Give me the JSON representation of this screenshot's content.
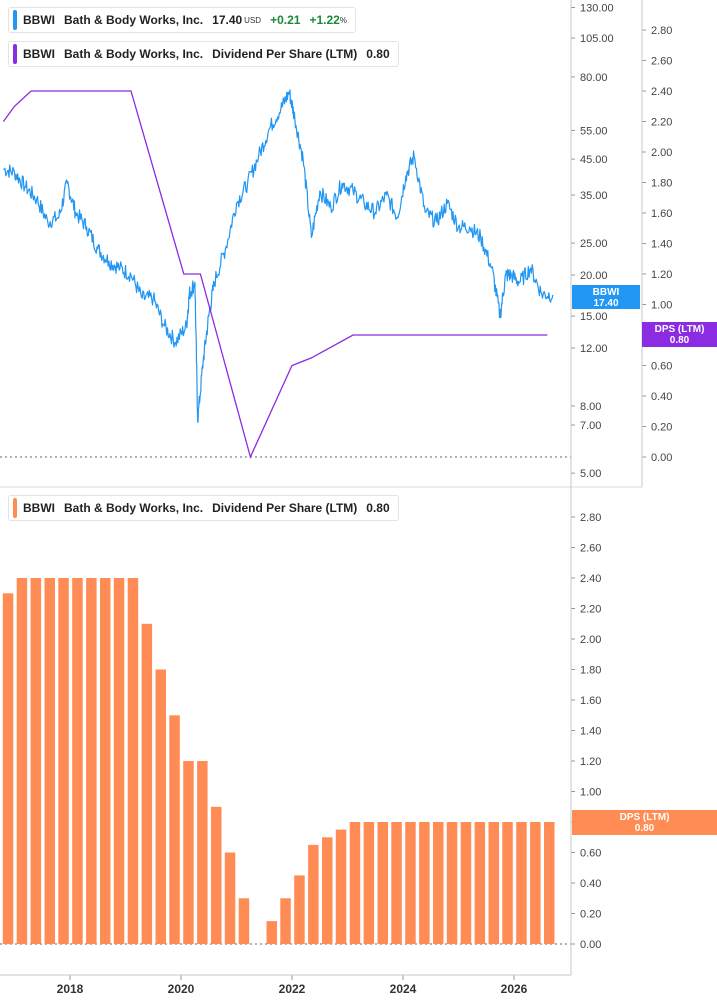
{
  "top_legend": {
    "price_row": {
      "ticker": "BBWI",
      "company": "Bath & Body Works, Inc.",
      "price": "17.40",
      "currency": "USD",
      "change": "+0.21",
      "change_pct": "+1.22",
      "pct_sign": "%",
      "color": "#2196f3"
    },
    "dps_row": {
      "ticker": "BBWI",
      "company": "Bath & Body Works, Inc.",
      "metric": "Dividend Per Share (LTM)",
      "value": "0.80",
      "color": "#8b2be2"
    }
  },
  "bottom_legend": {
    "ticker": "BBWI",
    "company": "Bath & Body Works, Inc.",
    "metric": "Dividend Per Share (LTM)",
    "value": "0.80",
    "color": "#ff8c55"
  },
  "badges": {
    "price": {
      "line1": "BBWI",
      "line2": "17.40",
      "color": "#2196f3"
    },
    "dps_top": {
      "line1": "DPS (LTM)",
      "line2": "0.80",
      "color": "#8b2be2"
    },
    "dps_bottom": {
      "line1": "DPS (LTM)",
      "line2": "0.80",
      "color": "#ff8c55"
    }
  },
  "chart_data": [
    {
      "type": "line",
      "title": "",
      "y_scale": "log",
      "price_axis_ticks": [
        "130.00",
        "105.00",
        "80.00",
        "55.00",
        "45.00",
        "35.00",
        "25.00",
        "20.00",
        "15.00",
        "12.00",
        "8.00",
        "7.00",
        "5.00"
      ],
      "dps_axis_ticks": [
        "2.80",
        "2.60",
        "2.40",
        "2.20",
        "2.00",
        "1.80",
        "1.60",
        "1.40",
        "1.20",
        "1.00",
        "0.80",
        "0.60",
        "0.40",
        "0.20",
        "0.00"
      ],
      "series": [
        {
          "name": "BBWI",
          "axis": "left-log",
          "color": "#2196f3",
          "x": [
            2016.8,
            2017.0,
            2017.2,
            2017.4,
            2017.6,
            2017.8,
            2017.95,
            2018.1,
            2018.3,
            2018.5,
            2018.7,
            2018.9,
            2019.1,
            2019.3,
            2019.5,
            2019.7,
            2019.9,
            2020.1,
            2020.15,
            2020.25,
            2020.3,
            2020.4,
            2020.5,
            2020.6,
            2020.8,
            2021.0,
            2021.2,
            2021.4,
            2021.6,
            2021.8,
            2021.95,
            2022.05,
            2022.2,
            2022.35,
            2022.5,
            2022.7,
            2022.9,
            2023.1,
            2023.3,
            2023.5,
            2023.7,
            2023.9,
            2024.05,
            2024.2,
            2024.4,
            2024.6,
            2024.8,
            2025.0,
            2025.2,
            2025.4,
            2025.6,
            2025.75,
            2025.85,
            2025.95,
            2026.1,
            2026.3,
            2026.5,
            2026.7
          ],
          "values": [
            42,
            41,
            37,
            34,
            29,
            30,
            38,
            31,
            28,
            24,
            22,
            21,
            20,
            17,
            17,
            14,
            12.5,
            14,
            17.5,
            19,
            7.2,
            11,
            15,
            19,
            24,
            33,
            38,
            46,
            56,
            64,
            72,
            60,
            45,
            26,
            36,
            32,
            38,
            36,
            33,
            31,
            35,
            30,
            40,
            46,
            31,
            29,
            33,
            28,
            28,
            26,
            21,
            15,
            20,
            20,
            19,
            21,
            17.5,
            17.4
          ]
        },
        {
          "name": "DPS (LTM)",
          "axis": "right-linear",
          "color": "#8b2be2",
          "x": [
            2016.8,
            2017.0,
            2017.3,
            2018.0,
            2019.0,
            2019.1,
            2020.05,
            2020.35,
            2021.25,
            2021.75,
            2022.0,
            2022.35,
            2023.1,
            2026.6
          ],
          "values": [
            2.2,
            2.3,
            2.4,
            2.4,
            2.4,
            2.4,
            1.2,
            1.2,
            0.0,
            0.4,
            0.6,
            0.65,
            0.8,
            0.8
          ]
        }
      ],
      "x_range": [
        2016.8,
        2026.7
      ]
    },
    {
      "type": "bar",
      "title": "",
      "series": [
        {
          "name": "Dividend Per Share (LTM)",
          "color": "#ff8c55",
          "x": [
            2016.88,
            2017.13,
            2017.38,
            2017.63,
            2017.88,
            2018.13,
            2018.38,
            2018.63,
            2018.88,
            2019.13,
            2019.38,
            2019.63,
            2019.88,
            2020.13,
            2020.38,
            2020.63,
            2020.88,
            2021.13,
            2021.38,
            2021.63,
            2021.88,
            2022.13,
            2022.38,
            2022.63,
            2022.88,
            2023.13,
            2023.38,
            2023.63,
            2023.88,
            2024.13,
            2024.38,
            2024.63,
            2024.88,
            2025.13,
            2025.38,
            2025.63,
            2025.88,
            2026.13,
            2026.38,
            2026.63
          ],
          "values": [
            2.3,
            2.4,
            2.4,
            2.4,
            2.4,
            2.4,
            2.4,
            2.4,
            2.4,
            2.4,
            2.1,
            1.8,
            1.5,
            1.2,
            1.2,
            0.9,
            0.6,
            0.3,
            0,
            0.15,
            0.3,
            0.45,
            0.65,
            0.7,
            0.75,
            0.8,
            0.8,
            0.8,
            0.8,
            0.8,
            0.8,
            0.8,
            0.8,
            0.8,
            0.8,
            0.8,
            0.8,
            0.8,
            0.8,
            0.8
          ]
        }
      ],
      "y_axis_ticks": [
        "2.80",
        "2.60",
        "2.40",
        "2.20",
        "2.00",
        "1.80",
        "1.60",
        "1.40",
        "1.20",
        "1.00",
        "0.80",
        "0.60",
        "0.40",
        "0.20",
        "0.00"
      ],
      "x_axis_ticks": [
        "2018",
        "2020",
        "2022",
        "2024",
        "2026"
      ],
      "ylim": [
        0,
        2.8
      ]
    }
  ]
}
